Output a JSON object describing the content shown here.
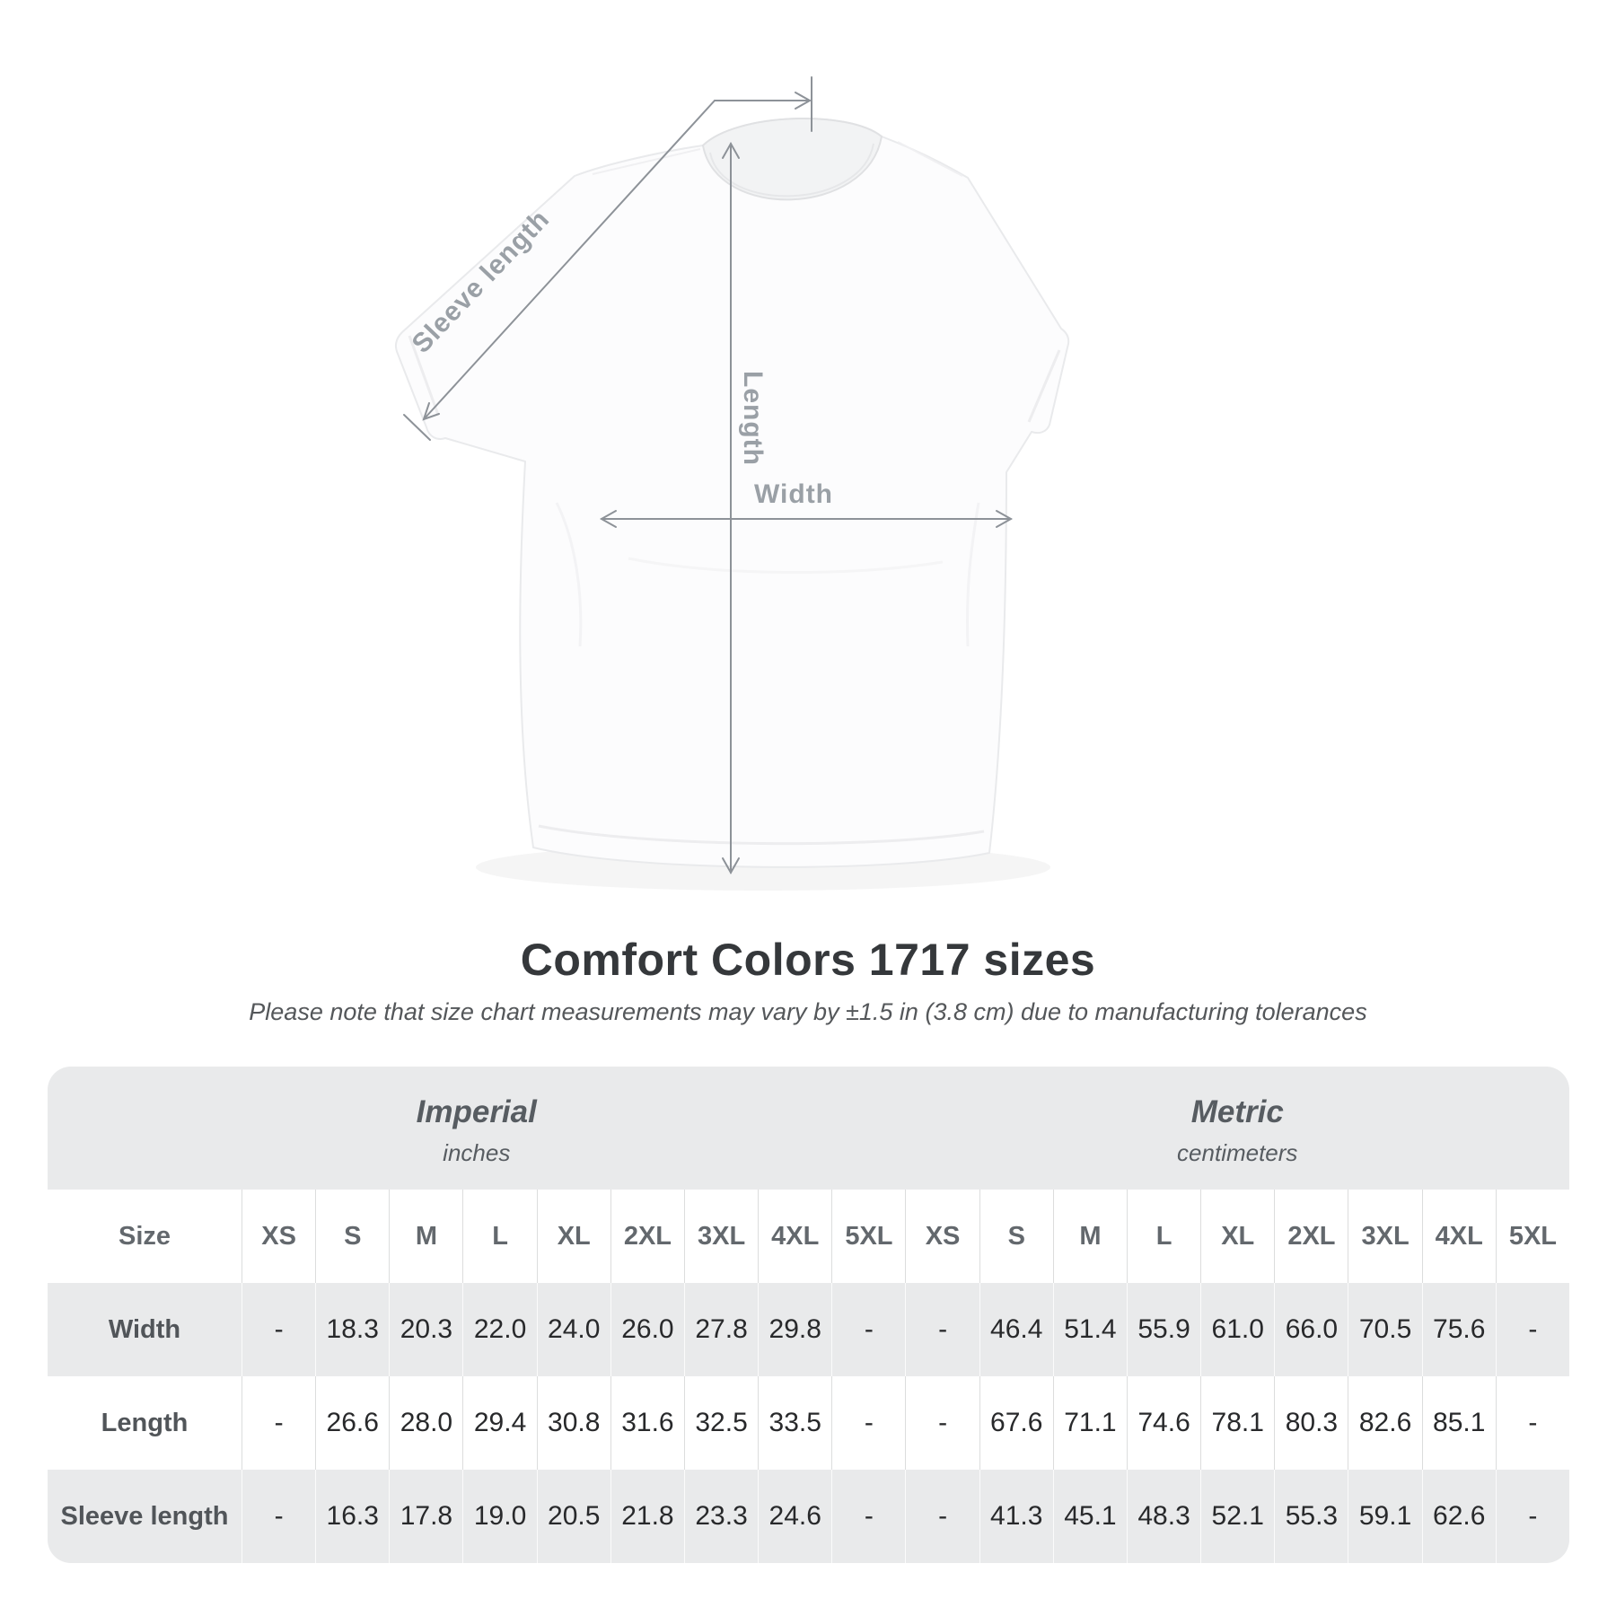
{
  "title": "Comfort Colors 1717 sizes",
  "subtitle": "Please note that size chart measurements may vary by ±1.5 in (3.8 cm) due to manufacturing tolerances",
  "diagram": {
    "sleeve_label": "Sleeve length",
    "length_label": "Length",
    "width_label": "Width",
    "line_color": "#8d9298",
    "label_color": "#9aa0a6"
  },
  "table": {
    "card_bg": "#e9eaeb",
    "stripe_white": "#ffffff",
    "groups": [
      {
        "name": "Imperial",
        "unit": "inches"
      },
      {
        "name": "Metric",
        "unit": "centimeters"
      }
    ],
    "size_header": "Size",
    "sizes": [
      "XS",
      "S",
      "M",
      "L",
      "XL",
      "2XL",
      "3XL",
      "4XL",
      "5XL"
    ],
    "rows": [
      {
        "label": "Width",
        "imperial": [
          "-",
          "18.3",
          "20.3",
          "22.0",
          "24.0",
          "26.0",
          "27.8",
          "29.8",
          "-"
        ],
        "metric": [
          "-",
          "46.4",
          "51.4",
          "55.9",
          "61.0",
          "66.0",
          "70.5",
          "75.6",
          "-"
        ]
      },
      {
        "label": "Length",
        "imperial": [
          "-",
          "26.6",
          "28.0",
          "29.4",
          "30.8",
          "31.6",
          "32.5",
          "33.5",
          "-"
        ],
        "metric": [
          "-",
          "67.6",
          "71.1",
          "74.6",
          "78.1",
          "80.3",
          "82.6",
          "85.1",
          "-"
        ]
      },
      {
        "label": "Sleeve length",
        "imperial": [
          "-",
          "16.3",
          "17.8",
          "19.0",
          "20.5",
          "21.8",
          "23.3",
          "24.6",
          "-"
        ],
        "metric": [
          "-",
          "41.3",
          "45.1",
          "48.3",
          "52.1",
          "55.3",
          "59.1",
          "62.6",
          "-"
        ]
      }
    ]
  }
}
